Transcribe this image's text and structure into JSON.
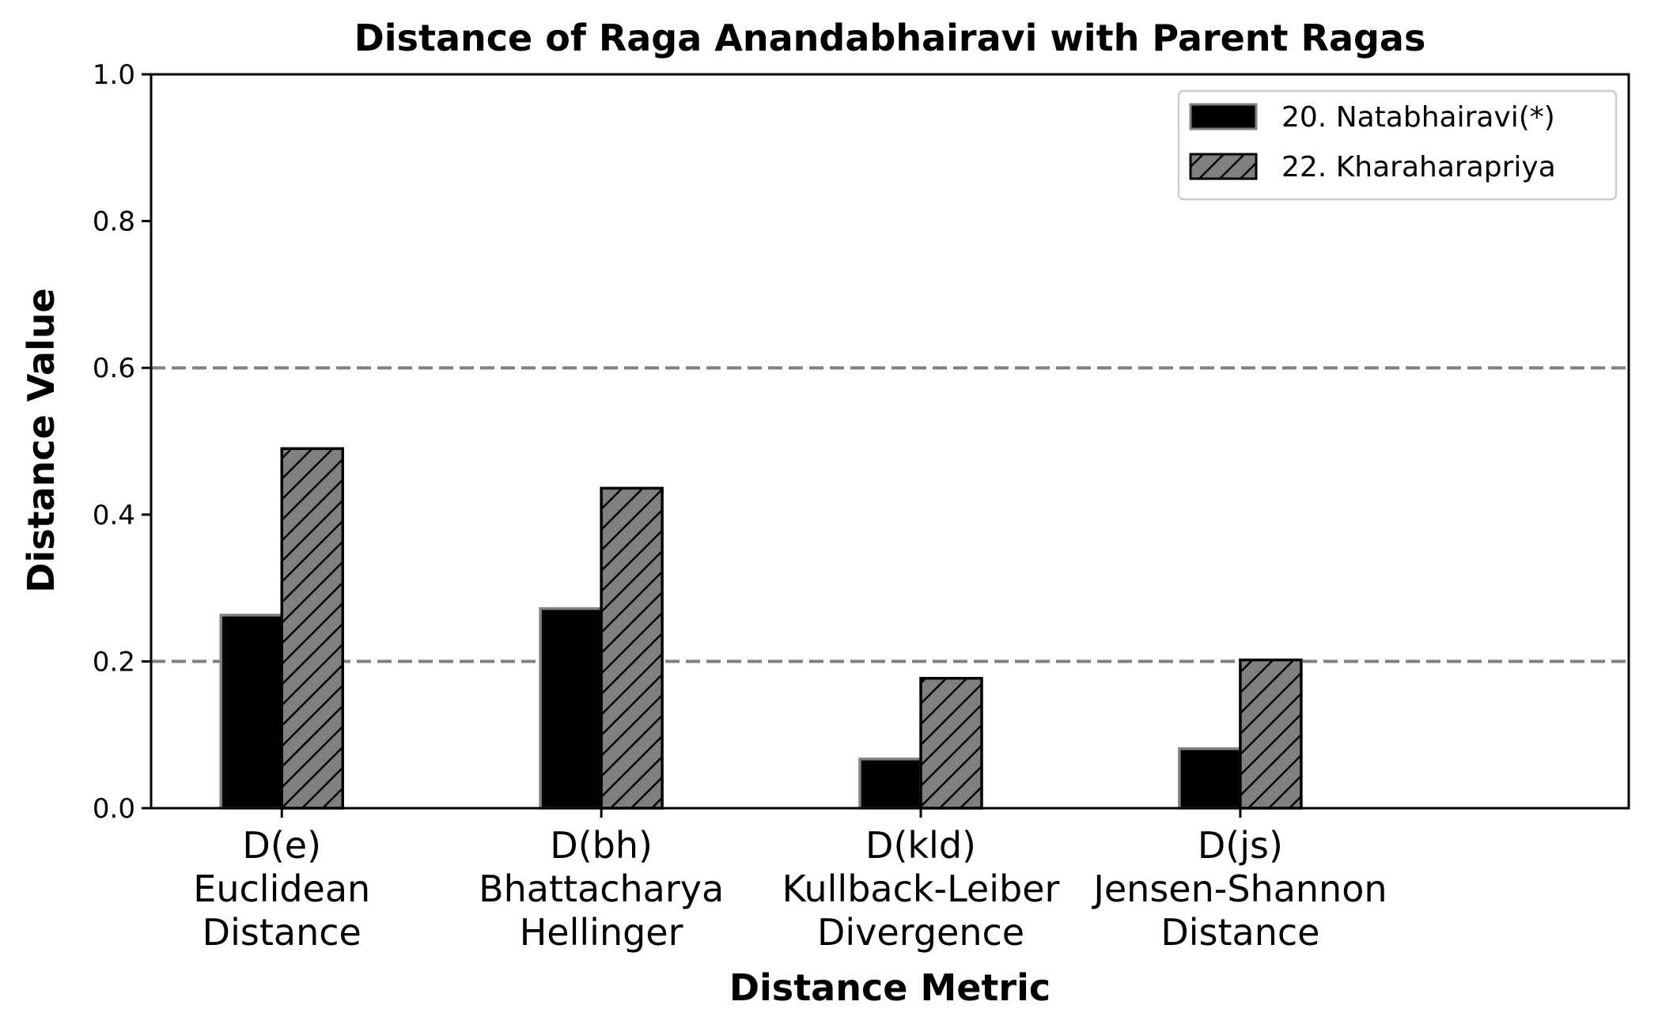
{
  "chart_data": {
    "type": "bar",
    "title": "Distance of Raga Anandabhairavi with Parent Ragas",
    "xlabel": "Distance Metric",
    "ylabel": "Distance Value",
    "ylim": [
      0,
      1.0
    ],
    "yticks": [
      "0.0",
      "0.2",
      "0.4",
      "0.6",
      "0.8",
      "1.0"
    ],
    "categories": [
      [
        "D(e)",
        "Euclidean",
        "Distance"
      ],
      [
        "D(bh)",
        "Bhattacharya",
        "Hellinger"
      ],
      [
        "D(kld)",
        "Kullback-Leiber",
        "Divergence"
      ],
      [
        "D(js)",
        "Jensen-Shannon",
        "Distance"
      ]
    ],
    "series": [
      {
        "name": "20. Natabhairavi(*)",
        "values": [
          0.263,
          0.272,
          0.067,
          0.081
        ],
        "color": "#000000",
        "edge": "#808080",
        "hatch": false
      },
      {
        "name": "22. Kharaharapriya",
        "values": [
          0.49,
          0.436,
          0.177,
          0.202
        ],
        "color": "#808080",
        "edge": "#000000",
        "hatch": true
      }
    ],
    "reference_lines": [
      0.2,
      0.6
    ],
    "grid": false,
    "legend_position": "top-right"
  }
}
